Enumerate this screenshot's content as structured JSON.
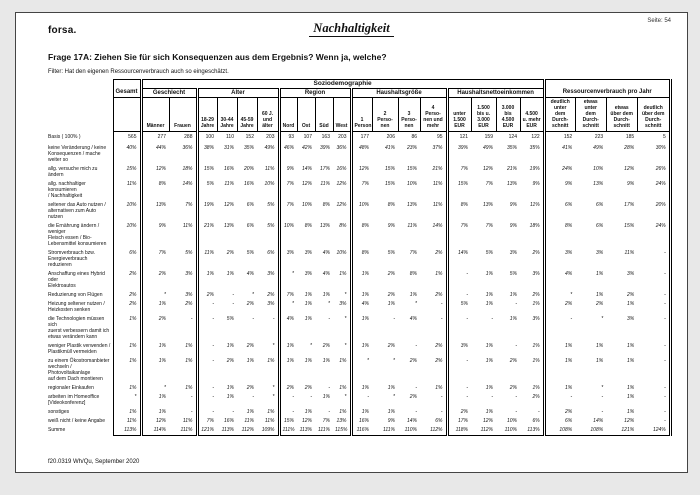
{
  "page": {
    "brand": "forsa.",
    "title": "Nachhaltigkeit",
    "page_label": "Seite: 54",
    "question": "Frage 17A: Ziehen Sie für sich Konsequenzen aus dem Ergebnis? Wenn ja, welche?",
    "filter": "Filter: Hat den eigenen Ressourcenverbrauch auch so eingeschätzt.",
    "footer": "f20.0319 Wh/Qu, September 2020"
  },
  "table": {
    "top_group": "Soziodemographie",
    "right_group": "Ressourcenverbrauch pro Jahr",
    "gesamt_label": "Gesamt",
    "basis_label": "Basis ( 100% )",
    "groups": [
      {
        "label": "Geschlecht",
        "cols": [
          "Männer",
          "Frauen"
        ]
      },
      {
        "label": "Alter",
        "cols": [
          "18-29\nJahre",
          "30-44\nJahre",
          "45-59\nJahre",
          "60 J.\nund\nälter"
        ]
      },
      {
        "label": "Region",
        "cols": [
          "Nord",
          "Ost",
          "Süd",
          "West"
        ]
      },
      {
        "label": "Haushaltsgröße",
        "cols": [
          "1\nPerson",
          "2\nPerso-\nnen",
          "3\nPerso-\nnen",
          "4\nPerso-\nnen und\nmehr"
        ]
      },
      {
        "label": "Haushaltsnettoeinkommen",
        "cols": [
          "unter\n1.500\nEUR",
          "1.500\nbis u.\n3.000\nEUR",
          "3.000\nbis\n4.500\nEUR",
          "4.500\nu. mehr\nEUR"
        ]
      },
      {
        "label": "Ressourcenverbrauch pro Jahr",
        "cols": [
          "deutlich\nunter\ndem\nDurch-\nschnitt",
          "etwas\nunter\ndem\nDurch-\nschnitt",
          "etwas\nüber dem\nDurch-\nschnitt",
          "deutlich\nüber dem\nDurch-\nschnitt"
        ]
      }
    ],
    "basis": [
      "565",
      "277",
      "288",
      "100",
      "110",
      "152",
      "203",
      "93",
      "107",
      "163",
      "203",
      "177",
      "206",
      "86",
      "95",
      "121",
      "159",
      "124",
      "122",
      "152",
      "223",
      "185",
      "5"
    ],
    "rows": [
      {
        "label": "keine Veränderung / keine\nKonsequenzen / mache weiter so",
        "values": [
          "40%",
          "44%",
          "36%",
          "38%",
          "31%",
          "35%",
          "49%",
          "46%",
          "42%",
          "39%",
          "36%",
          "48%",
          "41%",
          "23%",
          "37%",
          "39%",
          "49%",
          "35%",
          "35%",
          "41%",
          "49%",
          "28%",
          "30%"
        ]
      },
      {
        "label": "allg. versuche mich zu ändern",
        "values": [
          "15%",
          "12%",
          "18%",
          "15%",
          "16%",
          "20%",
          "11%",
          "9%",
          "14%",
          "17%",
          "16%",
          "12%",
          "15%",
          "15%",
          "21%",
          "7%",
          "12%",
          "21%",
          "19%",
          "24%",
          "10%",
          "12%",
          "26%"
        ]
      },
      {
        "label": "allg. nachhaltiger konsumieren\n/ Nachhaltigkeit",
        "values": [
          "11%",
          "8%",
          "14%",
          "5%",
          "11%",
          "16%",
          "10%",
          "7%",
          "12%",
          "11%",
          "12%",
          "7%",
          "15%",
          "10%",
          "11%",
          "15%",
          "7%",
          "13%",
          "9%",
          "9%",
          "13%",
          "9%",
          "24%"
        ]
      },
      {
        "label": "seltener das Auto nutzen /\nalternativen zum Auto nutzen",
        "values": [
          "10%",
          "13%",
          "7%",
          "19%",
          "12%",
          "6%",
          "5%",
          "7%",
          "10%",
          "8%",
          "12%",
          "10%",
          "8%",
          "13%",
          "11%",
          "8%",
          "13%",
          "9%",
          "11%",
          "6%",
          "6%",
          "17%",
          "20%"
        ]
      },
      {
        "label": "die Ernährung ändern / weniger\nFleisch essen / Bio-\nLebensmittel konsumieren",
        "values": [
          "10%",
          "9%",
          "11%",
          "21%",
          "13%",
          "6%",
          "5%",
          "10%",
          "8%",
          "13%",
          "8%",
          "8%",
          "9%",
          "11%",
          "14%",
          "7%",
          "7%",
          "9%",
          "18%",
          "8%",
          "6%",
          "15%",
          "24%"
        ]
      },
      {
        "label": "Stromverbrauch bzw.\nEnergieverbrauch reduzieren",
        "values": [
          "6%",
          "7%",
          "5%",
          "11%",
          "2%",
          "5%",
          "6%",
          "3%",
          "3%",
          "4%",
          "10%",
          "8%",
          "5%",
          "7%",
          "2%",
          "14%",
          "5%",
          "3%",
          "2%",
          "3%",
          "3%",
          "11%",
          "-"
        ]
      },
      {
        "label": "Anschaffung eines Hybrid oder\nElektroautos",
        "values": [
          "2%",
          "2%",
          "3%",
          "1%",
          "1%",
          "4%",
          "3%",
          "*",
          "3%",
          "4%",
          "1%",
          "1%",
          "2%",
          "8%",
          "1%",
          "-",
          "1%",
          "5%",
          "3%",
          "4%",
          "1%",
          "3%",
          "-"
        ]
      },
      {
        "label": "Reduzierung von Flügen",
        "values": [
          "2%",
          "*",
          "3%",
          "2%",
          "-",
          "*",
          "2%",
          "7%",
          "1%",
          "1%",
          "*",
          "1%",
          "2%",
          "1%",
          "2%",
          "-",
          "1%",
          "1%",
          "2%",
          "*",
          "1%",
          "2%",
          "-"
        ]
      },
      {
        "label": "Heizung seltener nutzen /\nHeizkosten senken",
        "values": [
          "2%",
          "1%",
          "2%",
          "-",
          "-",
          "2%",
          "3%",
          "*",
          "1%",
          "*",
          "3%",
          "4%",
          "1%",
          "*",
          "-",
          "5%",
          "1%",
          "-",
          "1%",
          "2%",
          "2%",
          "1%",
          "-"
        ]
      },
      {
        "label": "die Technologien müssen sich\nzuerst verbessern damit ich\netwas verändern kann",
        "values": [
          "1%",
          "2%",
          "-",
          "-",
          "5%",
          "-",
          "-",
          "4%",
          "1%",
          "-",
          "*",
          "1%",
          "-",
          "4%",
          "-",
          "-",
          "-",
          "1%",
          "3%",
          "-",
          "*",
          "3%",
          "-"
        ]
      },
      {
        "label": "weniger Plastik verwenden /\nPlastikmüll vermeiden",
        "values": [
          "1%",
          "1%",
          "1%",
          "-",
          "1%",
          "2%",
          "*",
          "1%",
          "*",
          "2%",
          "*",
          "1%",
          "2%",
          "-",
          "2%",
          "3%",
          "1%",
          "-",
          "1%",
          "1%",
          "1%",
          "1%",
          "-"
        ]
      },
      {
        "label": "zu einem Ökostromanbieter\nwechseln / Photovoltaikanlage\nauf dem Dach montieren",
        "values": [
          "1%",
          "1%",
          "1%",
          "-",
          "2%",
          "1%",
          "1%",
          "1%",
          "1%",
          "1%",
          "1%",
          "*",
          "*",
          "2%",
          "2%",
          "-",
          "1%",
          "2%",
          "1%",
          "1%",
          "1%",
          "1%",
          "-"
        ]
      },
      {
        "label": "regionaler Einkaufen",
        "values": [
          "1%",
          "*",
          "1%",
          "-",
          "1%",
          "2%",
          "*",
          "2%",
          "2%",
          "-",
          "1%",
          "1%",
          "1%",
          "-",
          "1%",
          "-",
          "1%",
          "2%",
          "1%",
          "1%",
          "*",
          "1%",
          "-"
        ]
      },
      {
        "label": "arbeiten im Homeoffice\n[Videokonferenz]",
        "values": [
          "*",
          "1%",
          "-",
          "-",
          "1%",
          "-",
          "*",
          "-",
          "-",
          "1%",
          "*",
          "-",
          "*",
          "2%",
          "-",
          "-",
          "-",
          "-",
          "2%",
          "-",
          "-",
          "1%",
          "-"
        ]
      },
      {
        "label": "sonstiges",
        "values": [
          "1%",
          "1%",
          "-",
          "-",
          "-",
          "1%",
          "1%",
          "-",
          "1%",
          "-",
          "1%",
          "1%",
          "1%",
          "-",
          "-",
          "2%",
          "1%",
          "-",
          "-",
          "2%",
          "-",
          "1%",
          "-"
        ]
      },
      {
        "label": "weiß nicht / keine Angabe",
        "values": [
          "11%",
          "12%",
          "11%",
          "7%",
          "16%",
          "11%",
          "11%",
          "15%",
          "12%",
          "7%",
          "13%",
          "16%",
          "9%",
          "14%",
          "6%",
          "17%",
          "12%",
          "10%",
          "6%",
          "6%",
          "14%",
          "12%",
          "-"
        ]
      },
      {
        "label": "Summe",
        "values": [
          "113%",
          "114%",
          "111%",
          "121%",
          "113%",
          "112%",
          "109%",
          "111%",
          "113%",
          "111%",
          "115%",
          "116%",
          "111%",
          "110%",
          "112%",
          "118%",
          "112%",
          "110%",
          "113%",
          "108%",
          "108%",
          "121%",
          "124%"
        ]
      }
    ]
  }
}
